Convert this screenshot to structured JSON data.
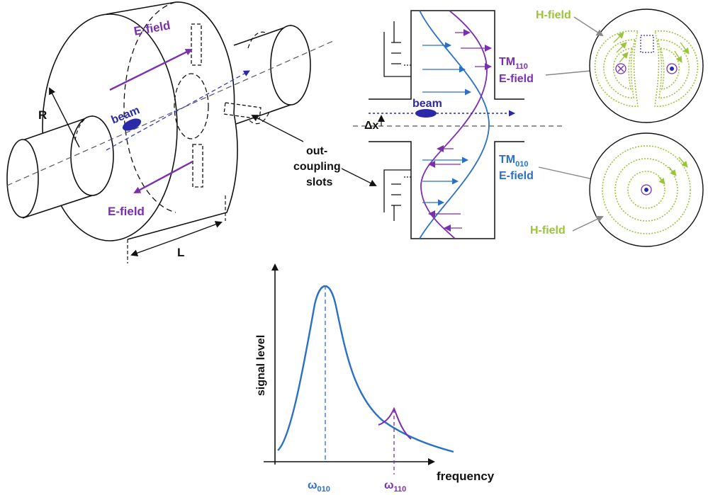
{
  "labels": {
    "e_field_top": "E-field",
    "e_field_bottom": "E-field",
    "beam_cavity": "beam",
    "radius": "R",
    "length": "L",
    "slots_line1": "out-",
    "slots_line2": "coupling",
    "slots_line3": "slots",
    "beam_section": "beam",
    "delta_x": "Δx",
    "tm110_main": "TM",
    "tm110_sub": "110",
    "tm110_field": "E-field",
    "tm010_main": "TM",
    "tm010_sub": "010",
    "tm010_field": "E-field",
    "h_field_top": "H-field",
    "h_field_bottom": "H-field"
  },
  "chart_data": {
    "type": "line",
    "xlabel": "frequency",
    "ylabel": "signal level",
    "peaks": [
      {
        "symbol": "ω",
        "sub": "010",
        "color": "#2a6fc8"
      },
      {
        "symbol": "ω",
        "sub": "110",
        "color": "#7b2fb0"
      }
    ]
  },
  "colors": {
    "te_purple": "#7b2fb0",
    "tm_blue": "#2a6fc8",
    "h_green": "#9bc43a",
    "beam": "#2a2aa8"
  }
}
